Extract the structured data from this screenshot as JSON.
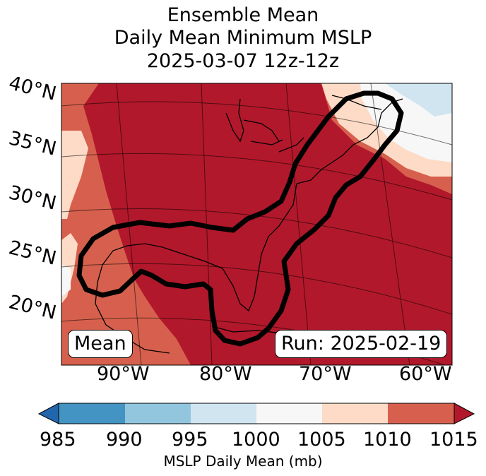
{
  "title": {
    "line1": "Ensemble Mean",
    "line2": "Daily Mean Minimum MSLP",
    "line3": "2025-03-07 12z-12z"
  },
  "map": {
    "lat_labels": [
      "40°N",
      "35°N",
      "30°N",
      "25°N",
      "20°N"
    ],
    "lon_labels": [
      "90°W",
      "80°W",
      "70°W",
      "60°W"
    ],
    "mean_box": "Mean",
    "run_box": "Run: 2025-02-19"
  },
  "colorbar": {
    "ticks": [
      "985",
      "990",
      "995",
      "1000",
      "1005",
      "1010",
      "1015"
    ],
    "label": "MSLP Daily Mean (mb)",
    "colors": [
      "#2166ac",
      "#4393c3",
      "#92c5de",
      "#d1e5f0",
      "#f7f7f7",
      "#fddbc7",
      "#d6604d",
      "#b2182b"
    ]
  }
}
